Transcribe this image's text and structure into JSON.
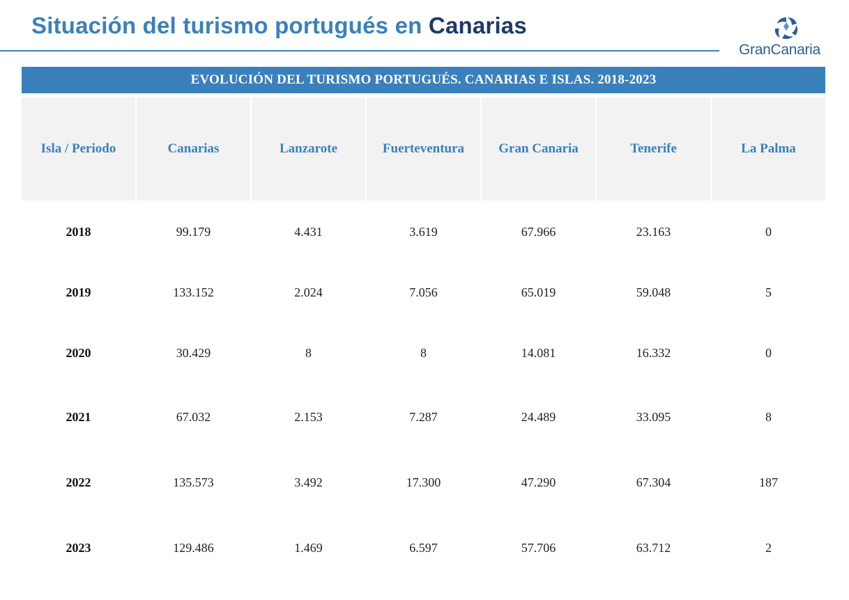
{
  "page": {
    "title_main": "Situación del turismo portugués en",
    "title_highlight": "Canarias"
  },
  "logo": {
    "text": "GranCanaria",
    "icon": "gran-canaria-star-icon"
  },
  "colors": {
    "accent": "#3a80bd",
    "dark": "#1e3a66",
    "header_bg": "#f2f2f2"
  },
  "table": {
    "banner": "EVOLUCIÓN DEL TURISMO PORTUGUÉS. CANARIAS E ISLAS. 2018-2023",
    "columns": [
      "Isla / Periodo",
      "Canarias",
      "Lanzarote",
      "Fuerteventura",
      "Gran Canaria",
      "Tenerife",
      "La Palma"
    ],
    "rows": [
      [
        "2018",
        "99.179",
        "4.431",
        "3.619",
        "67.966",
        "23.163",
        "0"
      ],
      [
        "2019",
        "133.152",
        "2.024",
        "7.056",
        "65.019",
        "59.048",
        "5"
      ],
      [
        "2020",
        "30.429",
        "8",
        "8",
        "14.081",
        "16.332",
        "0"
      ],
      [
        "2021",
        "67.032",
        "2.153",
        "7.287",
        "24.489",
        "33.095",
        "8"
      ],
      [
        "2022",
        "135.573",
        "3.492",
        "17.300",
        "47.290",
        "67.304",
        "187"
      ],
      [
        "2023",
        "129.486",
        "1.469",
        "6.597",
        "57.706",
        "63.712",
        "2"
      ]
    ]
  }
}
